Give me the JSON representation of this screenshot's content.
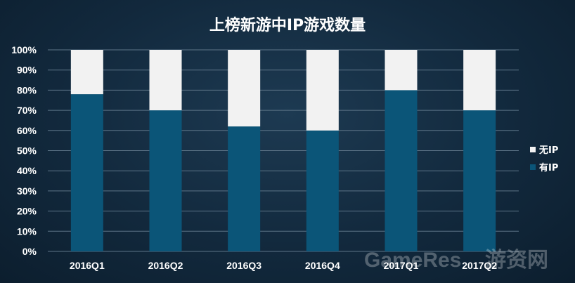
{
  "chart_data": {
    "type": "bar",
    "stacked": true,
    "title": "上榜新游中IP游戏数量",
    "categories": [
      "2016Q1",
      "2016Q2",
      "2016Q3",
      "2016Q4",
      "2017Q1",
      "2017Q2"
    ],
    "series": [
      {
        "name": "有IP",
        "values": [
          78,
          70,
          62,
          60,
          80,
          70
        ],
        "color": "#0b5578"
      },
      {
        "name": "无IP",
        "values": [
          22,
          30,
          38,
          40,
          20,
          30
        ],
        "color": "#f2f2f2"
      }
    ],
    "y_ticks": [
      "0%",
      "10%",
      "20%",
      "30%",
      "40%",
      "50%",
      "60%",
      "70%",
      "80%",
      "90%",
      "100%"
    ],
    "ylim": [
      0,
      100
    ],
    "grid": true,
    "legend_position": "right",
    "legend_order": [
      "无IP",
      "有IP"
    ]
  },
  "watermark": {
    "text": "GameRes",
    "cn": "游资网"
  }
}
